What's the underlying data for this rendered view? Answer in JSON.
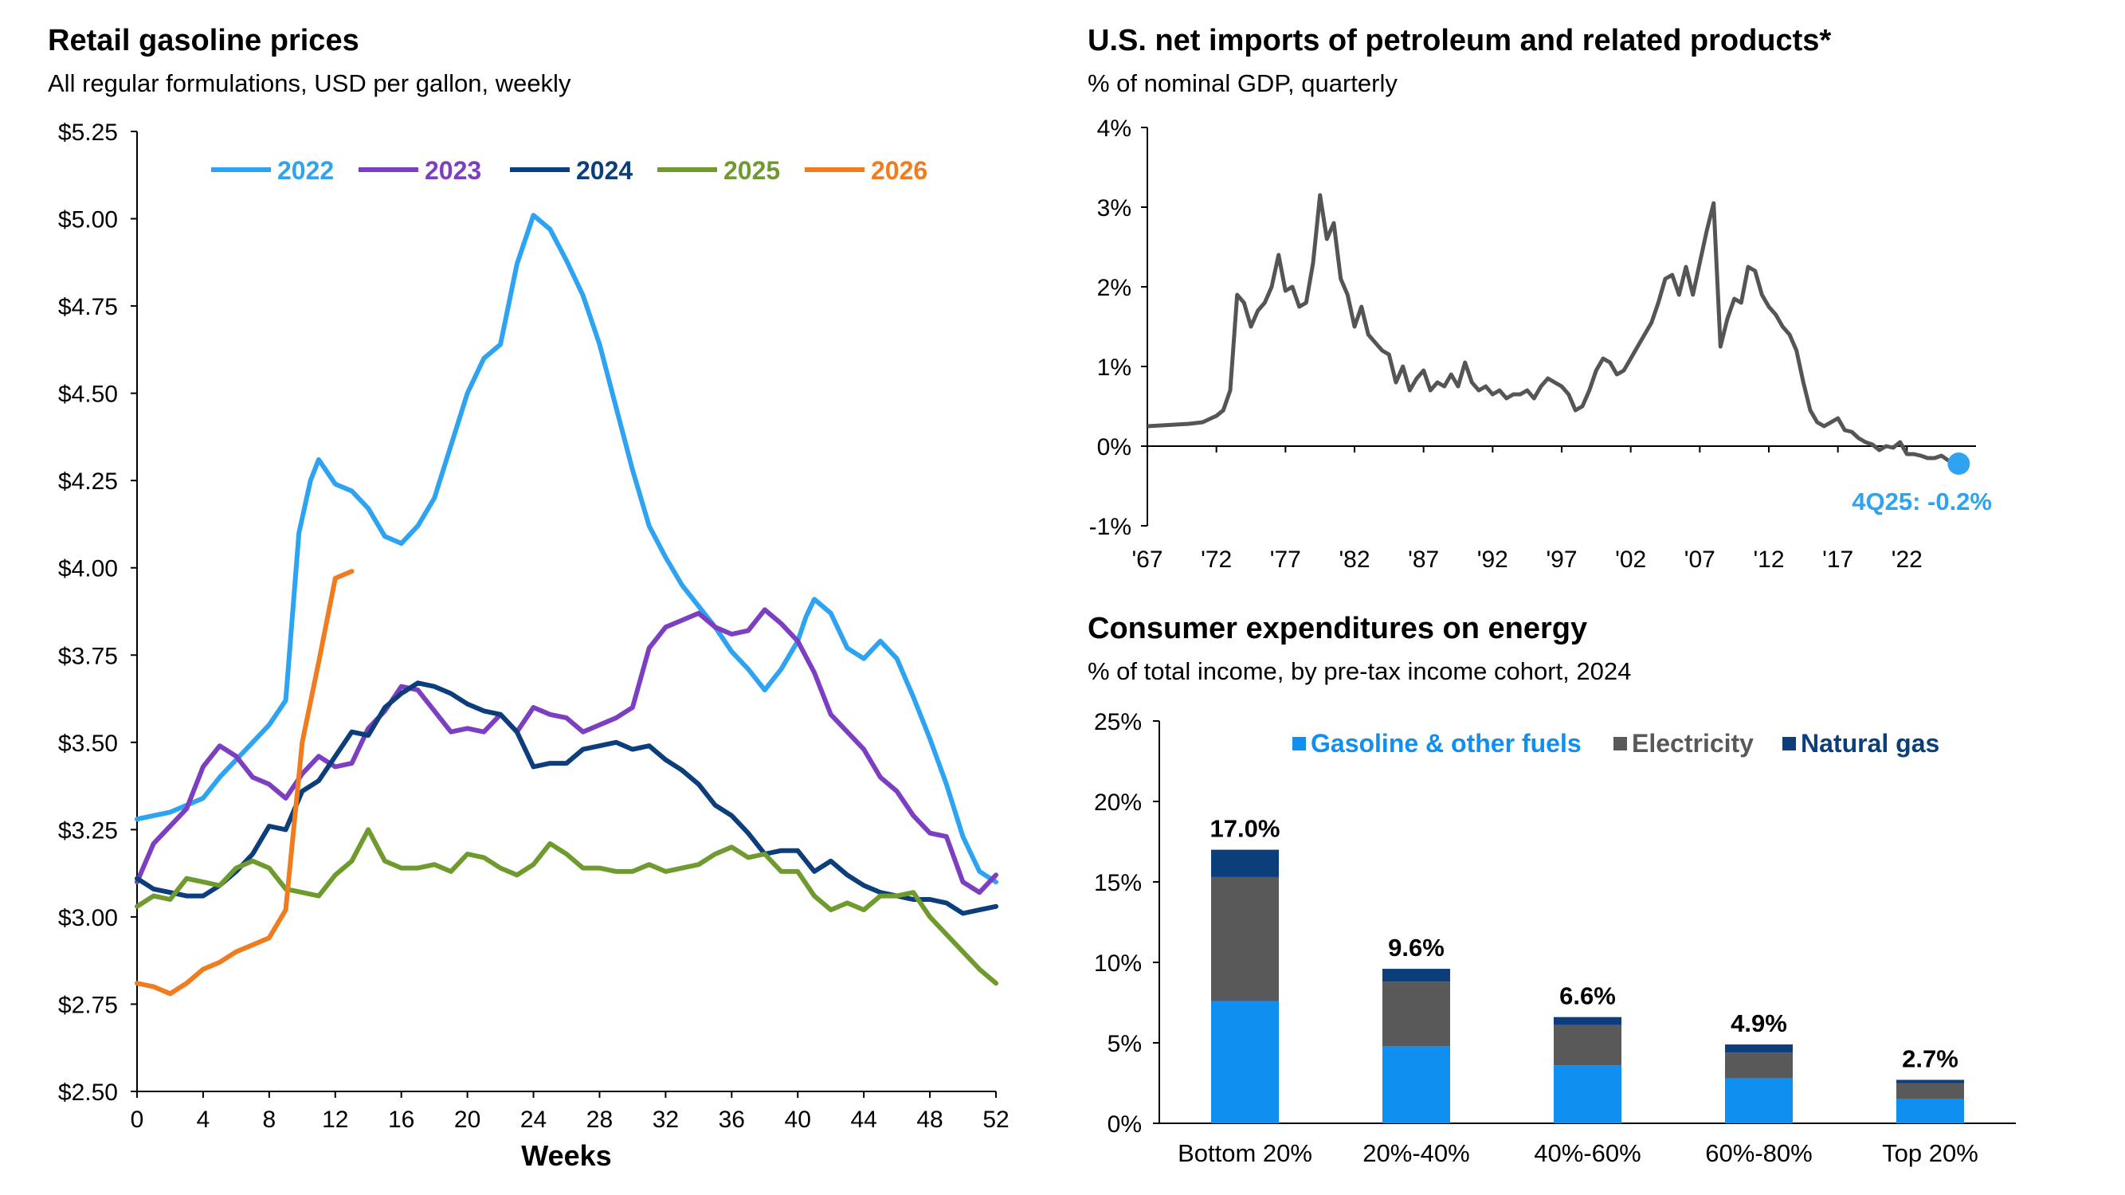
{
  "chart_data": [
    {
      "type": "line",
      "title": "Retail gasoline prices",
      "subtitle": "All regular formulations, USD per gallon, weekly",
      "xlabel": "Weeks",
      "ylabel": "",
      "xlim": [
        0,
        52
      ],
      "ylim": [
        2.5,
        5.25
      ],
      "x_ticks": [
        "0",
        "4",
        "8",
        "12",
        "16",
        "20",
        "24",
        "28",
        "32",
        "36",
        "40",
        "44",
        "48",
        "52"
      ],
      "y_ticks": [
        "$2.50",
        "$2.75",
        "$3.00",
        "$3.25",
        "$3.50",
        "$3.75",
        "$4.00",
        "$4.25",
        "$4.50",
        "$4.75",
        "$5.00",
        "$5.25"
      ],
      "legend": "top",
      "series": [
        {
          "name": "2022",
          "color": "#2ea3f2",
          "x": [
            0,
            1,
            2,
            3,
            4,
            5,
            6,
            7,
            8,
            9,
            9.8,
            10.5,
            11,
            12,
            13,
            14,
            15,
            16,
            17,
            18,
            19,
            20,
            21,
            22,
            23,
            24,
            25,
            26,
            27,
            28,
            29,
            30,
            31,
            32,
            33,
            34,
            35,
            36,
            37,
            38,
            39,
            40,
            40.5,
            41,
            42,
            43,
            44,
            45,
            46,
            47,
            48,
            49,
            50,
            51,
            52
          ],
          "y": [
            3.28,
            3.29,
            3.3,
            3.32,
            3.34,
            3.4,
            3.45,
            3.5,
            3.55,
            3.62,
            4.1,
            4.25,
            4.31,
            4.24,
            4.22,
            4.17,
            4.09,
            4.07,
            4.12,
            4.2,
            4.35,
            4.5,
            4.6,
            4.64,
            4.87,
            5.01,
            4.97,
            4.88,
            4.78,
            4.64,
            4.46,
            4.28,
            4.12,
            4.03,
            3.95,
            3.89,
            3.83,
            3.76,
            3.71,
            3.65,
            3.71,
            3.79,
            3.86,
            3.91,
            3.87,
            3.77,
            3.74,
            3.79,
            3.74,
            3.63,
            3.51,
            3.38,
            3.23,
            3.13,
            3.1
          ]
        },
        {
          "name": "2023",
          "color": "#7d3fc1",
          "x": [
            0,
            1,
            2,
            3,
            4,
            5,
            6,
            7,
            8,
            9,
            10,
            11,
            12,
            13,
            14,
            15,
            16,
            17,
            18,
            19,
            20,
            21,
            22,
            23,
            24,
            25,
            26,
            27,
            28,
            29,
            30,
            31,
            32,
            33,
            34,
            35,
            36,
            37,
            38,
            39,
            40,
            41,
            42,
            43,
            44,
            45,
            46,
            47,
            48,
            49,
            50,
            51,
            52
          ],
          "y": [
            3.1,
            3.21,
            3.26,
            3.31,
            3.43,
            3.49,
            3.46,
            3.4,
            3.38,
            3.34,
            3.41,
            3.46,
            3.43,
            3.44,
            3.54,
            3.59,
            3.66,
            3.65,
            3.59,
            3.53,
            3.54,
            3.53,
            3.58,
            3.53,
            3.6,
            3.58,
            3.57,
            3.53,
            3.55,
            3.57,
            3.6,
            3.77,
            3.83,
            3.85,
            3.87,
            3.83,
            3.81,
            3.82,
            3.88,
            3.84,
            3.79,
            3.7,
            3.58,
            3.53,
            3.48,
            3.4,
            3.36,
            3.29,
            3.24,
            3.23,
            3.1,
            3.07,
            3.12
          ]
        },
        {
          "name": "2024",
          "color": "#0c3e7c",
          "x": [
            0,
            1,
            2,
            3,
            4,
            5,
            6,
            7,
            8,
            9,
            10,
            11,
            12,
            13,
            14,
            15,
            16,
            17,
            18,
            19,
            20,
            21,
            22,
            23,
            24,
            25,
            26,
            27,
            28,
            29,
            30,
            31,
            32,
            33,
            34,
            35,
            36,
            37,
            38,
            39,
            40,
            41,
            42,
            43,
            44,
            45,
            46,
            47,
            48,
            49,
            50,
            51,
            52
          ],
          "y": [
            3.11,
            3.08,
            3.07,
            3.06,
            3.06,
            3.09,
            3.13,
            3.18,
            3.26,
            3.25,
            3.36,
            3.39,
            3.46,
            3.53,
            3.52,
            3.6,
            3.64,
            3.67,
            3.66,
            3.64,
            3.61,
            3.59,
            3.58,
            3.53,
            3.43,
            3.44,
            3.44,
            3.48,
            3.49,
            3.5,
            3.48,
            3.49,
            3.45,
            3.42,
            3.38,
            3.32,
            3.29,
            3.24,
            3.18,
            3.19,
            3.19,
            3.13,
            3.16,
            3.12,
            3.09,
            3.07,
            3.06,
            3.05,
            3.05,
            3.04,
            3.01,
            3.02,
            3.03
          ]
        },
        {
          "name": "2025",
          "color": "#6f9a2e",
          "x": [
            0,
            1,
            2,
            3,
            4,
            5,
            6,
            7,
            8,
            9,
            10,
            11,
            12,
            13,
            14,
            15,
            16,
            17,
            18,
            19,
            20,
            21,
            22,
            23,
            24,
            25,
            26,
            27,
            28,
            29,
            30,
            31,
            32,
            33,
            34,
            35,
            36,
            37,
            38,
            39,
            40,
            41,
            42,
            43,
            44,
            45,
            46,
            47,
            48,
            49,
            50,
            51,
            52
          ],
          "y": [
            3.03,
            3.06,
            3.05,
            3.11,
            3.1,
            3.09,
            3.14,
            3.16,
            3.14,
            3.08,
            3.07,
            3.06,
            3.12,
            3.16,
            3.25,
            3.16,
            3.14,
            3.14,
            3.15,
            3.13,
            3.18,
            3.17,
            3.14,
            3.12,
            3.15,
            3.21,
            3.18,
            3.14,
            3.14,
            3.13,
            3.13,
            3.15,
            3.13,
            3.14,
            3.15,
            3.18,
            3.2,
            3.17,
            3.18,
            3.13,
            3.13,
            3.06,
            3.02,
            3.04,
            3.02,
            3.06,
            3.06,
            3.07,
            3.0,
            2.95,
            2.9,
            2.85,
            2.81
          ]
        },
        {
          "name": "2026",
          "color": "#ef7d1f",
          "x": [
            0,
            1,
            2,
            3,
            4,
            5,
            6,
            7,
            8,
            9,
            10,
            11,
            12,
            13
          ],
          "y": [
            2.81,
            2.8,
            2.78,
            2.81,
            2.85,
            2.87,
            2.9,
            2.92,
            2.94,
            3.02,
            3.5,
            3.73,
            3.97,
            3.99
          ]
        }
      ]
    },
    {
      "type": "line",
      "title": "U.S. net imports of petroleum and related products*",
      "subtitle": "% of nominal GDP, quarterly",
      "xlabel": "",
      "ylabel": "",
      "xlim": [
        1967,
        2027
      ],
      "ylim": [
        -1,
        4
      ],
      "x_ticks": [
        "'67",
        "'72",
        "'77",
        "'82",
        "'87",
        "'92",
        "'97",
        "'02",
        "'07",
        "'12",
        "'17",
        "'22"
      ],
      "y_ticks": [
        "-1%",
        "0%",
        "1%",
        "2%",
        "3%",
        "4%"
      ],
      "annotation": "4Q25: -0.2%",
      "colors": {
        "line": "#555555",
        "marker": "#2ea3f2"
      },
      "series": [
        {
          "name": "Net imports",
          "x": [
            1967,
            1968,
            1969,
            1970,
            1971,
            1972,
            1972.5,
            1973,
            1973.5,
            1974,
            1974.5,
            1975,
            1975.5,
            1976,
            1976.5,
            1977,
            1977.5,
            1978,
            1978.5,
            1979,
            1979.5,
            1980,
            1980.5,
            1981,
            1981.5,
            1982,
            1982.5,
            1983,
            1983.5,
            1984,
            1984.5,
            1985,
            1985.5,
            1986,
            1986.5,
            1987,
            1987.5,
            1988,
            1988.5,
            1989,
            1989.5,
            1990,
            1990.5,
            1991,
            1991.5,
            1992,
            1992.5,
            1993,
            1993.5,
            1994,
            1994.5,
            1995,
            1995.5,
            1996,
            1996.5,
            1997,
            1997.5,
            1998,
            1998.5,
            1999,
            1999.5,
            2000,
            2000.5,
            2001,
            2001.5,
            2002,
            2002.5,
            2003,
            2003.5,
            2004,
            2004.5,
            2005,
            2005.5,
            2006,
            2006.5,
            2007,
            2007.5,
            2008,
            2008.5,
            2009,
            2009.5,
            2010,
            2010.5,
            2011,
            2011.5,
            2012,
            2012.5,
            2013,
            2013.5,
            2014,
            2014.5,
            2015,
            2015.5,
            2016,
            2016.5,
            2017,
            2017.5,
            2018,
            2018.5,
            2019,
            2019.5,
            2020,
            2020.5,
            2021,
            2021.5,
            2022,
            2022.5,
            2023,
            2023.5,
            2024,
            2024.5,
            2025,
            2025.75
          ],
          "y": [
            0.25,
            0.26,
            0.27,
            0.28,
            0.3,
            0.38,
            0.45,
            0.7,
            1.9,
            1.8,
            1.5,
            1.7,
            1.8,
            2.0,
            2.4,
            1.95,
            2.0,
            1.75,
            1.8,
            2.3,
            3.15,
            2.6,
            2.8,
            2.1,
            1.9,
            1.5,
            1.75,
            1.4,
            1.3,
            1.2,
            1.15,
            0.8,
            1.0,
            0.7,
            0.85,
            0.95,
            0.7,
            0.8,
            0.75,
            0.9,
            0.75,
            1.05,
            0.8,
            0.7,
            0.75,
            0.65,
            0.7,
            0.6,
            0.65,
            0.65,
            0.7,
            0.6,
            0.75,
            0.85,
            0.8,
            0.75,
            0.65,
            0.45,
            0.5,
            0.7,
            0.95,
            1.1,
            1.05,
            0.9,
            0.95,
            1.1,
            1.25,
            1.4,
            1.55,
            1.8,
            2.1,
            2.15,
            1.9,
            2.25,
            1.9,
            2.3,
            2.7,
            3.05,
            1.25,
            1.6,
            1.85,
            1.8,
            2.25,
            2.2,
            1.9,
            1.75,
            1.65,
            1.5,
            1.4,
            1.2,
            0.8,
            0.45,
            0.3,
            0.25,
            0.3,
            0.35,
            0.2,
            0.18,
            0.1,
            0.05,
            0.02,
            -0.05,
            0.0,
            -0.02,
            0.05,
            -0.1,
            -0.1,
            -0.12,
            -0.15,
            -0.15,
            -0.12,
            -0.18,
            -0.22
          ]
        }
      ]
    },
    {
      "type": "bar",
      "stacked": true,
      "title": "Consumer expenditures on energy",
      "subtitle": "% of total income, by pre-tax income cohort, 2024",
      "xlabel": "",
      "ylabel": "",
      "ylim": [
        0,
        25
      ],
      "y_ticks": [
        "0%",
        "5%",
        "10%",
        "15%",
        "20%",
        "25%"
      ],
      "legend": "top",
      "categories": [
        "Bottom 20%",
        "20%-40%",
        "40%-60%",
        "60%-80%",
        "Top 20%"
      ],
      "totals": [
        "17.0%",
        "9.6%",
        "6.6%",
        "4.9%",
        "2.7%"
      ],
      "total_values": [
        17.0,
        9.6,
        6.6,
        4.9,
        2.7
      ],
      "series": [
        {
          "name": "Gasoline & other fuels",
          "color": "#0f8ff0",
          "values": [
            7.6,
            4.8,
            3.6,
            2.8,
            1.5
          ]
        },
        {
          "name": "Electricity",
          "color": "#595959",
          "values": [
            7.7,
            4.0,
            2.5,
            1.6,
            1.0
          ]
        },
        {
          "name": "Natural gas",
          "color": "#0c3e7c",
          "values": [
            1.7,
            0.8,
            0.5,
            0.5,
            0.2
          ]
        }
      ]
    }
  ]
}
